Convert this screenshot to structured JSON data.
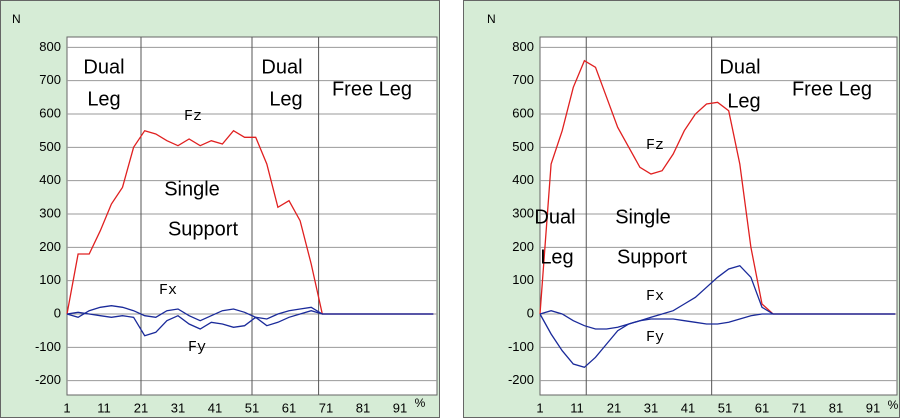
{
  "chart_data": [
    {
      "type": "line",
      "y_label": "N",
      "x_label": "%",
      "x": [
        1,
        4,
        7,
        10,
        13,
        16,
        19,
        22,
        25,
        28,
        31,
        34,
        37,
        40,
        43,
        46,
        49,
        52,
        55,
        58,
        61,
        64,
        67,
        70,
        73,
        76,
        79,
        82,
        85,
        88,
        91,
        94,
        97,
        100
      ],
      "series": [
        {
          "name": "Fz",
          "color": "#e02020",
          "values": [
            0,
            180,
            180,
            250,
            330,
            380,
            500,
            550,
            540,
            520,
            505,
            525,
            505,
            520,
            510,
            550,
            530,
            530,
            450,
            320,
            340,
            280,
            150,
            0,
            0,
            0,
            0,
            0,
            0,
            0,
            0,
            0,
            0,
            0
          ]
        },
        {
          "name": "Fx",
          "color": "#1a2a9a",
          "values": [
            0,
            -10,
            10,
            20,
            25,
            20,
            10,
            -5,
            -10,
            10,
            15,
            -5,
            -20,
            -5,
            10,
            15,
            5,
            -10,
            -15,
            0,
            10,
            15,
            20,
            0,
            0,
            0,
            0,
            0,
            0,
            0,
            0,
            0,
            0,
            0
          ]
        },
        {
          "name": "Fy",
          "color": "#1a2a9a",
          "values": [
            0,
            5,
            0,
            -5,
            -10,
            -5,
            -10,
            -65,
            -55,
            -20,
            -5,
            -30,
            -45,
            -25,
            -30,
            -40,
            -35,
            -10,
            -35,
            -25,
            -10,
            0,
            10,
            0,
            0,
            0,
            0,
            0,
            0,
            0,
            0,
            0,
            0,
            0
          ]
        }
      ],
      "xlim": [
        1,
        101
      ],
      "ylim": [
        -243,
        831
      ],
      "xticks": [
        1,
        11,
        21,
        31,
        41,
        51,
        61,
        71,
        81,
        91
      ],
      "yticks": [
        -200,
        -100,
        0,
        100,
        200,
        300,
        400,
        500,
        600,
        700,
        800
      ],
      "grid": true,
      "phase_lines": [
        21,
        51,
        69
      ],
      "annotations": [
        "Dual",
        "Leg",
        "Dual",
        "Leg",
        "Free Leg",
        "Fz",
        "Single",
        "Support",
        "Fx",
        "Fy"
      ]
    },
    {
      "type": "line",
      "y_label": "N",
      "x_label": "%",
      "x": [
        1,
        4,
        7,
        10,
        13,
        16,
        19,
        22,
        25,
        28,
        31,
        34,
        37,
        40,
        43,
        46,
        49,
        52,
        55,
        58,
        61,
        64,
        67,
        70,
        73,
        76,
        79,
        82,
        85,
        88,
        91,
        94,
        97
      ],
      "series": [
        {
          "name": "Fz",
          "color": "#e02020",
          "values": [
            0,
            450,
            550,
            680,
            760,
            740,
            650,
            560,
            500,
            440,
            420,
            430,
            480,
            550,
            600,
            630,
            635,
            610,
            450,
            200,
            30,
            0,
            0,
            0,
            0,
            0,
            0,
            0,
            0,
            0,
            0,
            0,
            0
          ]
        },
        {
          "name": "Fx",
          "color": "#1a2a9a",
          "values": [
            0,
            10,
            0,
            -20,
            -35,
            -45,
            -45,
            -40,
            -30,
            -20,
            -10,
            0,
            10,
            30,
            50,
            80,
            110,
            135,
            145,
            110,
            20,
            0,
            0,
            0,
            0,
            0,
            0,
            0,
            0,
            0,
            0,
            0,
            0
          ]
        },
        {
          "name": "Fy",
          "color": "#1a2a9a",
          "values": [
            0,
            -60,
            -110,
            -150,
            -160,
            -130,
            -90,
            -50,
            -30,
            -20,
            -15,
            -15,
            -15,
            -20,
            -25,
            -30,
            -30,
            -25,
            -15,
            -5,
            0,
            0,
            0,
            0,
            0,
            0,
            0,
            0,
            0,
            0,
            0,
            0,
            0
          ]
        }
      ],
      "xlim": [
        1,
        97.5
      ],
      "ylim": [
        -243,
        831
      ],
      "xticks": [
        1,
        11,
        21,
        31,
        41,
        51,
        61,
        71,
        81,
        91
      ],
      "yticks": [
        -200,
        -100,
        0,
        100,
        200,
        300,
        400,
        500,
        600,
        700,
        800
      ],
      "grid": true,
      "phase_lines": [
        13.5,
        47.4
      ],
      "annotations": [
        "Dual",
        "Leg",
        "Free Leg",
        "Fz",
        "Dual",
        "Leg",
        "Single",
        "Support",
        "Fx",
        "Fy"
      ]
    }
  ]
}
